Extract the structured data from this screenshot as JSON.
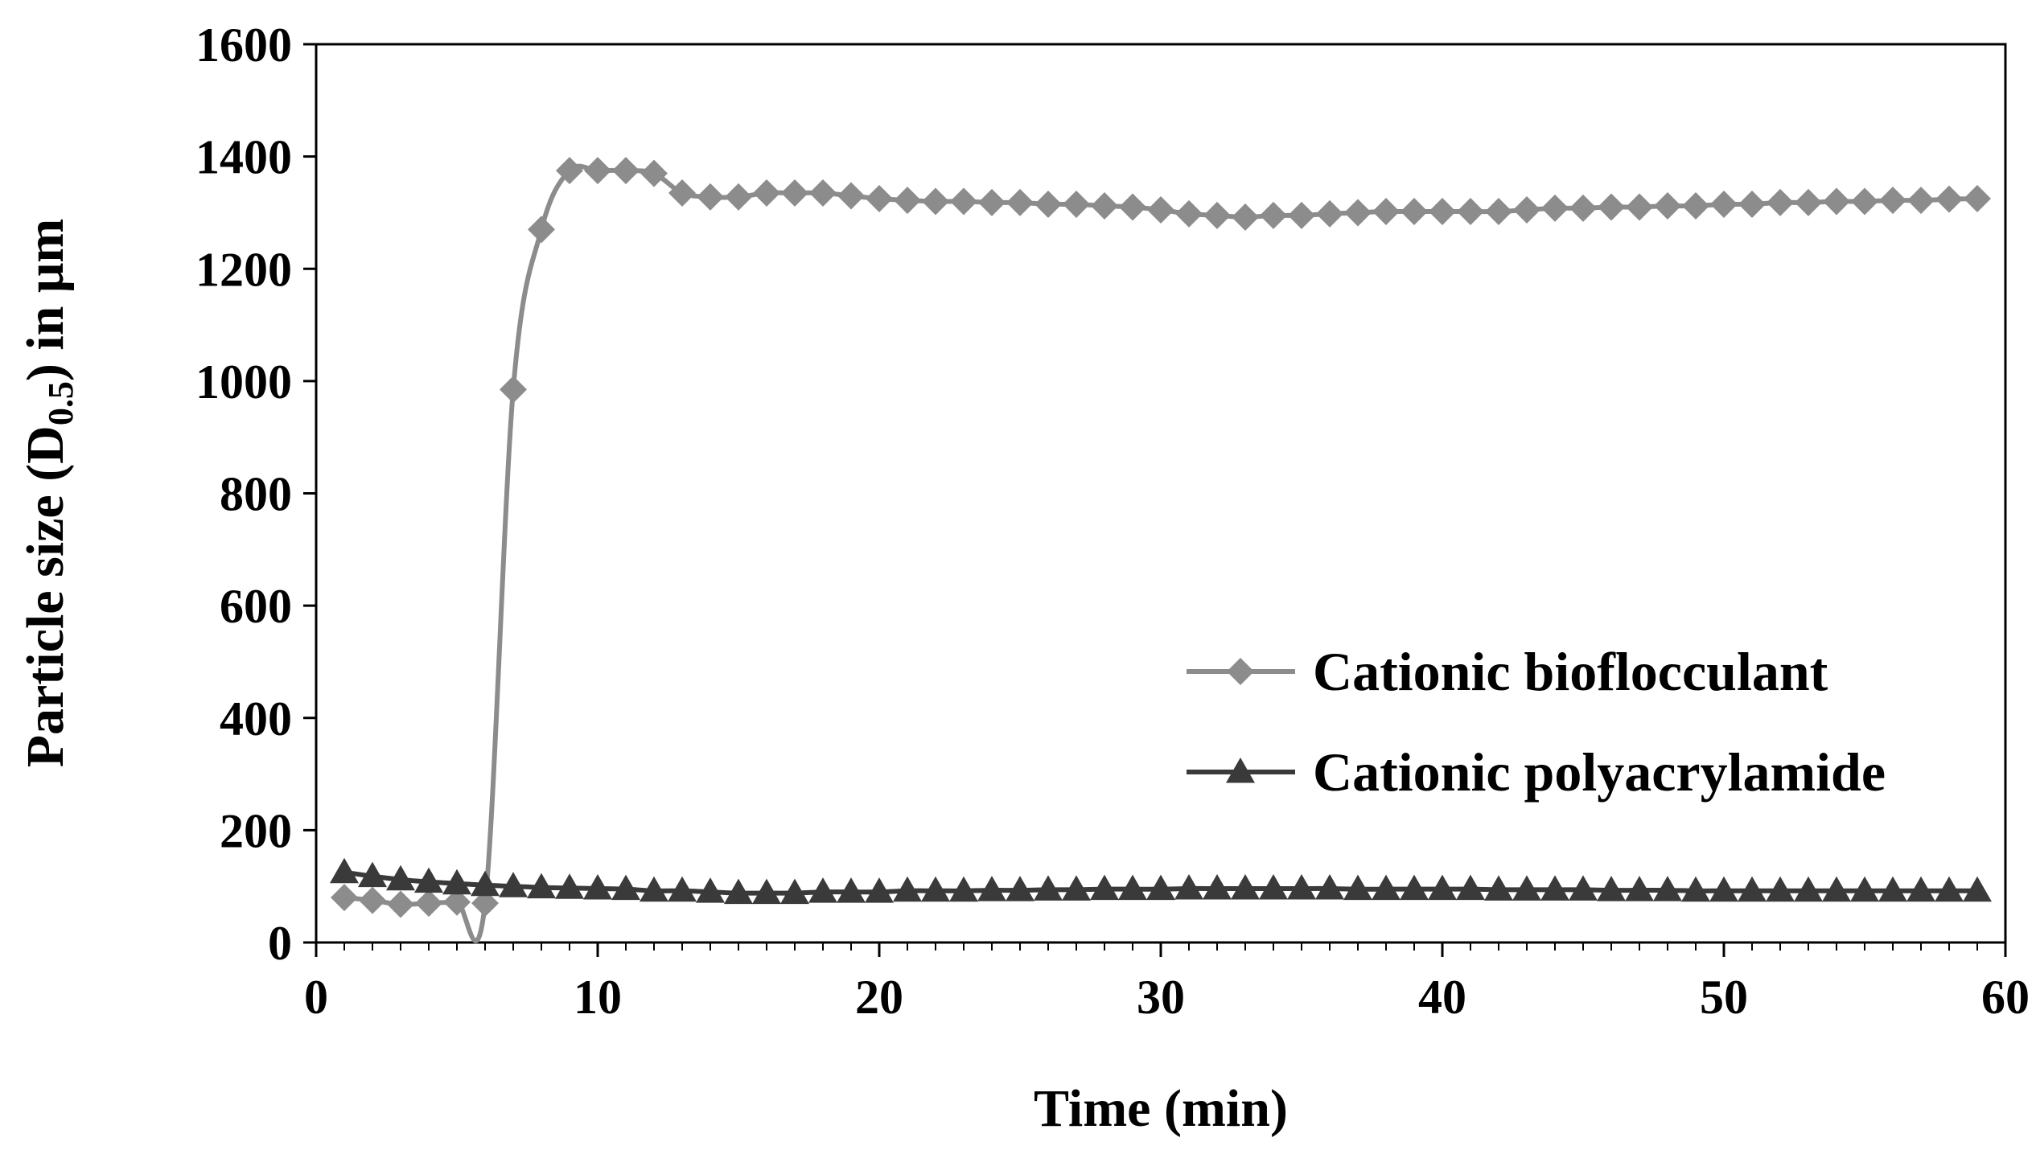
{
  "chart_data": {
    "type": "line",
    "title": "",
    "xlabel": "Time (min)",
    "ylabel": {
      "prefix": "Particle size (D",
      "subscript": "0.5",
      "suffix": ") in μm"
    },
    "xlim": [
      0,
      60
    ],
    "ylim": [
      0,
      1600
    ],
    "xticks": [
      "0",
      "10",
      "20",
      "30",
      "40",
      "50",
      "60"
    ],
    "yticks": [
      "0",
      "200",
      "400",
      "600",
      "800",
      "1000",
      "1200",
      "1400",
      "1600"
    ],
    "grid": false,
    "legend_position": "right",
    "x": [
      1,
      2,
      3,
      4,
      5,
      6,
      7,
      8,
      9,
      10,
      11,
      12,
      13,
      14,
      15,
      16,
      17,
      18,
      19,
      20,
      21,
      22,
      23,
      24,
      25,
      26,
      27,
      28,
      29,
      30,
      31,
      32,
      33,
      34,
      35,
      36,
      37,
      38,
      39,
      40,
      41,
      42,
      43,
      44,
      45,
      46,
      47,
      48,
      49,
      50,
      51,
      52,
      53,
      54,
      55,
      56,
      57,
      58,
      59
    ],
    "series": [
      {
        "name": "Cationic bioflocculant",
        "marker": "diamond",
        "color": "#8c8c8c",
        "values": [
          80,
          75,
          68,
          70,
          72,
          70,
          985,
          1270,
          1375,
          1375,
          1375,
          1370,
          1335,
          1328,
          1328,
          1335,
          1335,
          1335,
          1330,
          1325,
          1322,
          1320,
          1320,
          1318,
          1318,
          1315,
          1315,
          1312,
          1310,
          1305,
          1298,
          1295,
          1292,
          1295,
          1295,
          1298,
          1300,
          1302,
          1302,
          1302,
          1302,
          1302,
          1305,
          1308,
          1308,
          1310,
          1310,
          1312,
          1312,
          1315,
          1315,
          1318,
          1318,
          1320,
          1320,
          1322,
          1322,
          1324,
          1325
        ]
      },
      {
        "name": "Cationic polyacrylamide",
        "marker": "triangle",
        "color": "#3a3a3a",
        "values": [
          125,
          118,
          112,
          108,
          105,
          102,
          100,
          98,
          97,
          96,
          95,
          92,
          92,
          90,
          88,
          88,
          88,
          90,
          90,
          90,
          92,
          92,
          92,
          93,
          93,
          94,
          94,
          95,
          95,
          95,
          96,
          96,
          96,
          96,
          96,
          96,
          95,
          95,
          95,
          95,
          95,
          94,
          94,
          94,
          94,
          93,
          93,
          93,
          92,
          92,
          92,
          92,
          92,
          92,
          92,
          92,
          92,
          92,
          92
        ]
      }
    ]
  }
}
